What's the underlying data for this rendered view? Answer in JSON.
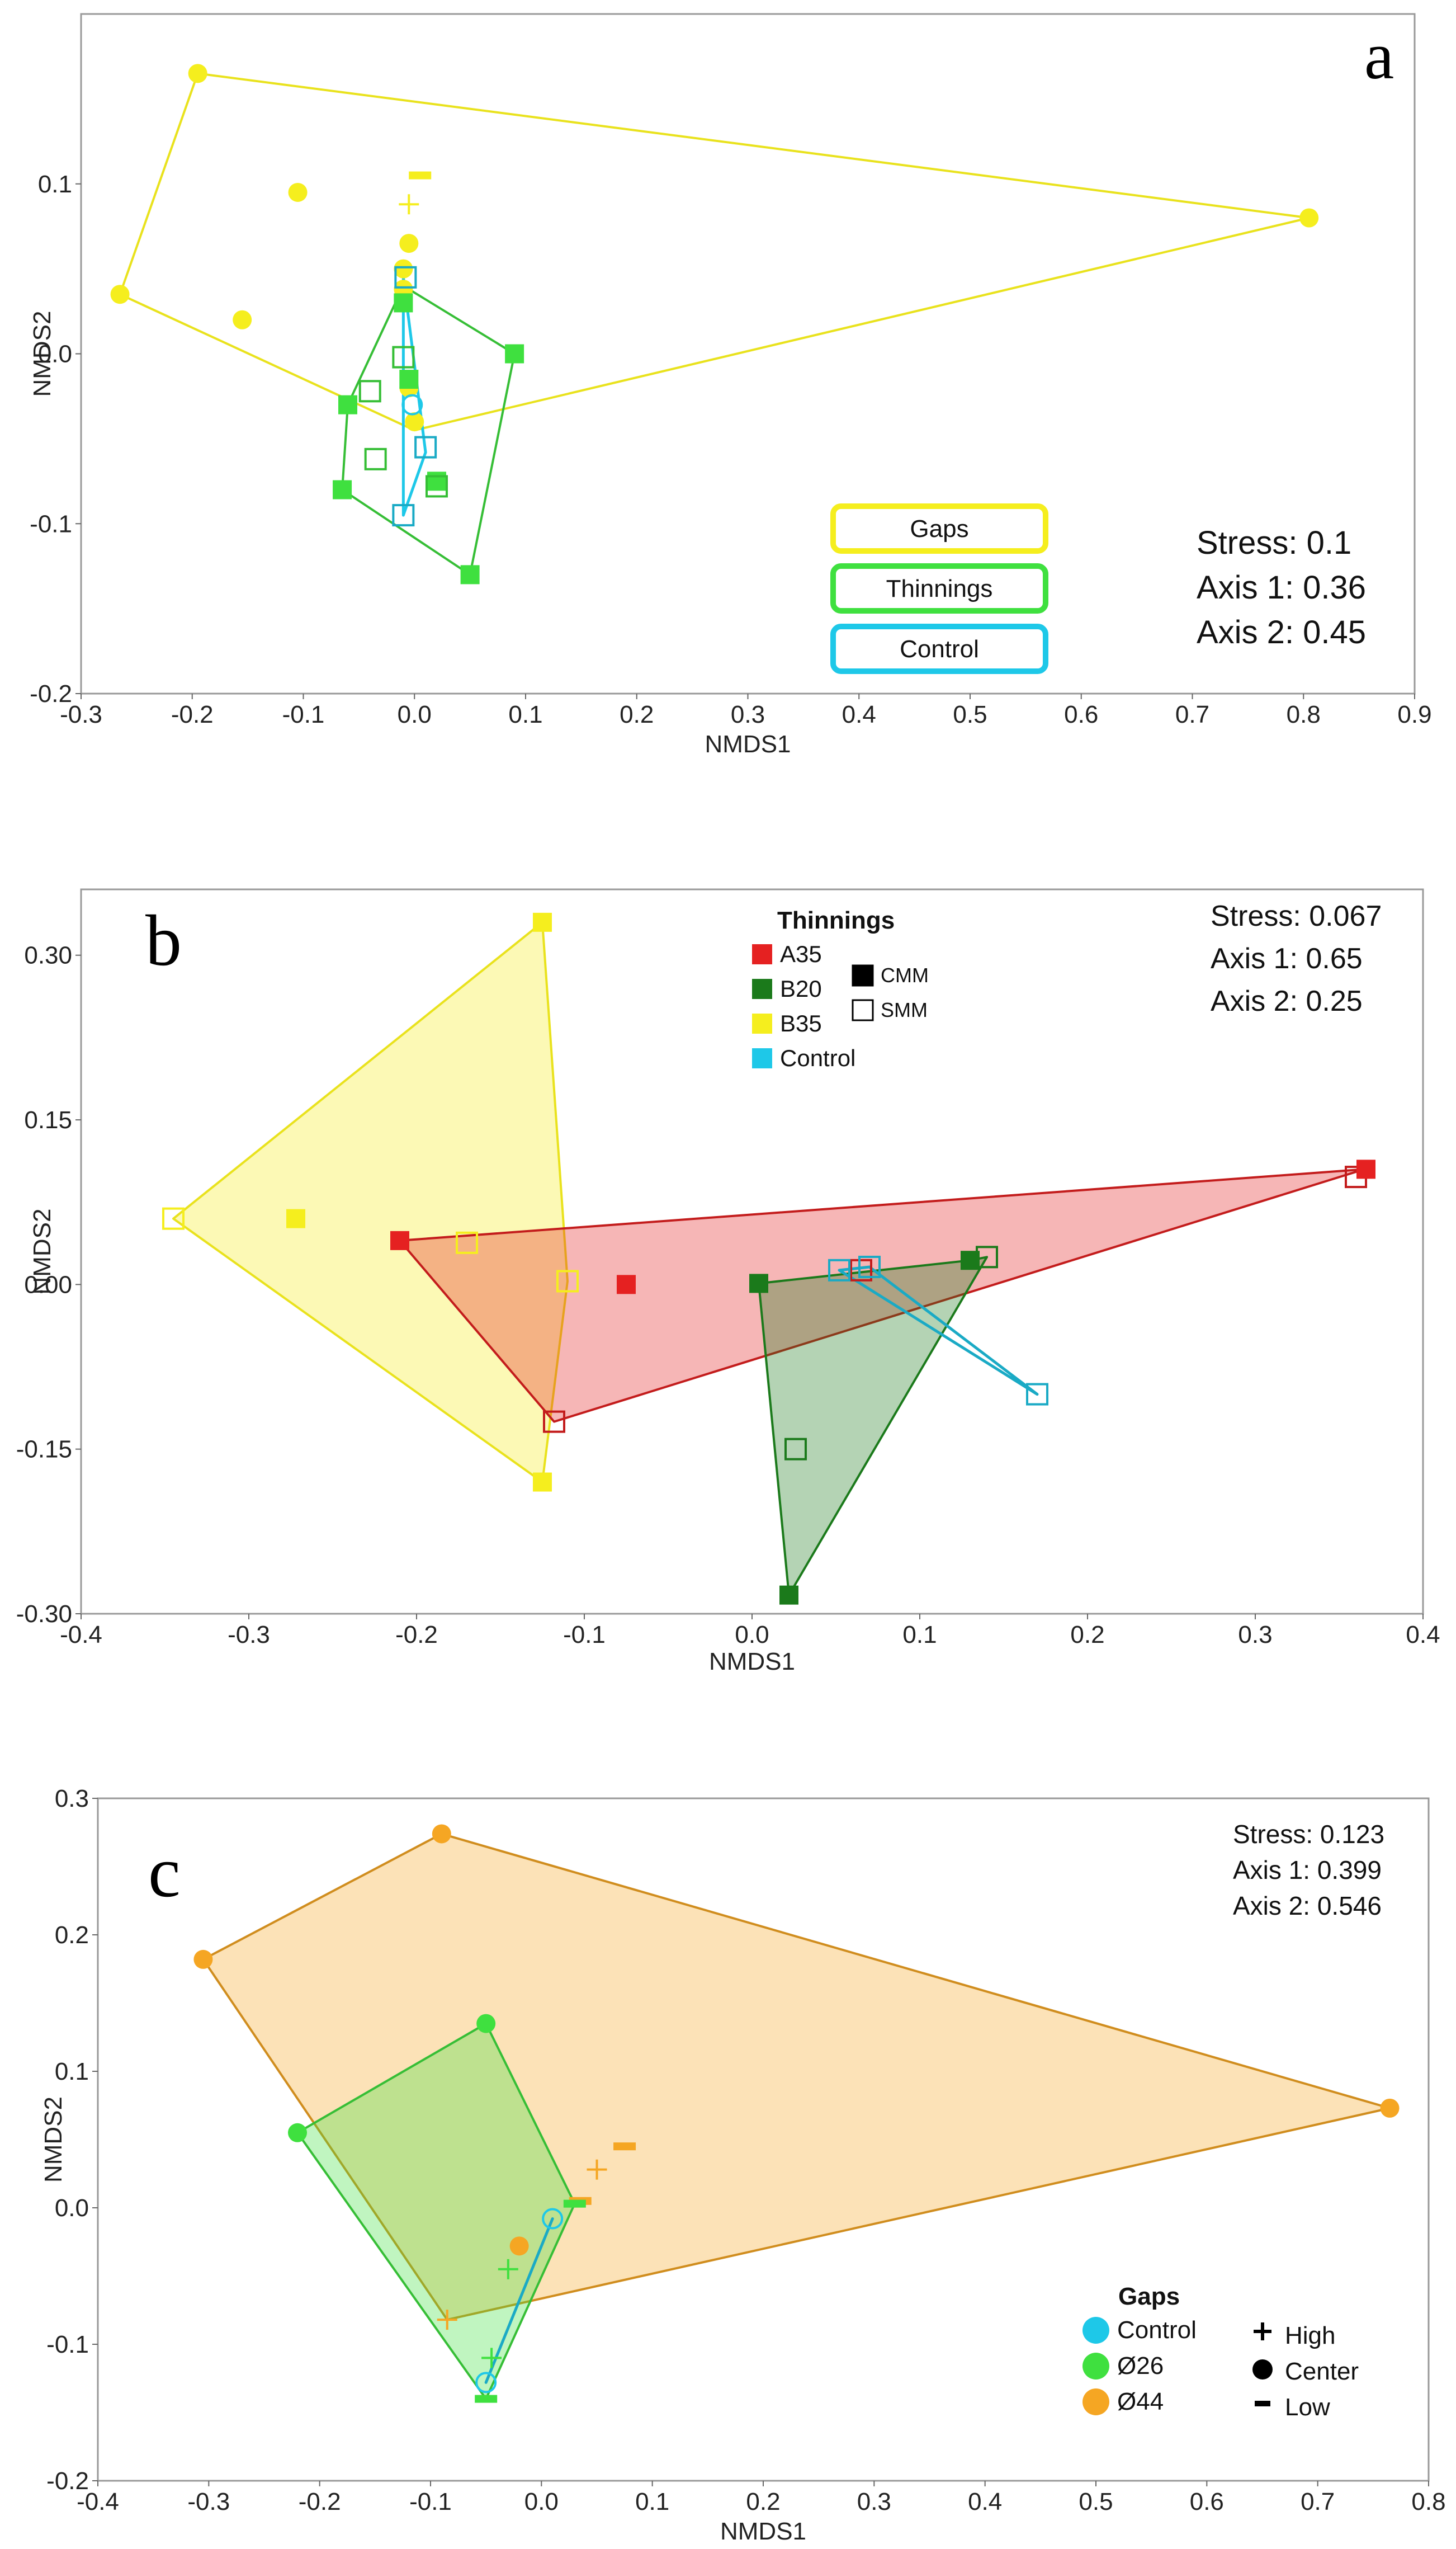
{
  "colors": {
    "yellow": "#F5EE1E",
    "green_light": "#3FE03F",
    "green_dark": "#1B7A1B",
    "cyan": "#1EC8E8",
    "red": "#E52121",
    "orange": "#F5A623",
    "gray_frame": "#999999"
  },
  "chart_data": [
    {
      "type": "scatter",
      "panel": "a",
      "xlabel": "NMDS1",
      "ylabel": "NMDS2",
      "xlim": [
        -0.3,
        0.9
      ],
      "ylim": [
        -0.2,
        0.2
      ],
      "xticks": [
        "-0.3",
        "-0.2",
        "-0.1",
        "0.0",
        "0.1",
        "0.2",
        "0.3",
        "0.4",
        "0.5",
        "0.6",
        "0.7",
        "0.8",
        "0.9"
      ],
      "yticks": [
        "0.1",
        "0.0",
        "-0.1",
        "-0.2"
      ],
      "stats": [
        "Stress: 0.1",
        "Axis 1: 0.36",
        "Axis 2: 0.45"
      ],
      "legend": [
        {
          "label": "Gaps",
          "color": "#F5EE1E"
        },
        {
          "label": "Thinnings",
          "color": "#3FE03F"
        },
        {
          "label": "Control",
          "color": "#1EC8E8"
        }
      ],
      "series": [
        {
          "name": "Gaps",
          "color": "#F5EE1E",
          "hull": [
            [
              -0.195,
              0.165
            ],
            [
              0.805,
              0.08
            ],
            [
              0.0,
              -0.045
            ],
            [
              -0.265,
              0.035
            ]
          ],
          "points": [
            {
              "x": -0.195,
              "y": 0.165,
              "m": "circle"
            },
            {
              "x": -0.105,
              "y": 0.095,
              "m": "circle"
            },
            {
              "x": -0.265,
              "y": 0.035,
              "m": "circle"
            },
            {
              "x": -0.155,
              "y": 0.02,
              "m": "circle"
            },
            {
              "x": 0.805,
              "y": 0.08,
              "m": "circle"
            },
            {
              "x": 0.005,
              "y": 0.105,
              "m": "dash"
            },
            {
              "x": -0.005,
              "y": 0.088,
              "m": "plus"
            },
            {
              "x": -0.005,
              "y": 0.065,
              "m": "circle"
            },
            {
              "x": -0.01,
              "y": 0.05,
              "m": "circle"
            },
            {
              "x": -0.01,
              "y": 0.038,
              "m": "circle"
            },
            {
              "x": -0.005,
              "y": -0.02,
              "m": "circle"
            },
            {
              "x": 0.0,
              "y": -0.04,
              "m": "circle"
            }
          ]
        },
        {
          "name": "Thinnings",
          "color": "#3FE03F",
          "hull": [
            [
              -0.01,
              0.04
            ],
            [
              0.09,
              0.0
            ],
            [
              0.05,
              -0.13
            ],
            [
              -0.065,
              -0.08
            ],
            [
              -0.06,
              -0.03
            ]
          ],
          "points": [
            {
              "x": 0.09,
              "y": 0.0,
              "m": "sq"
            },
            {
              "x": -0.06,
              "y": -0.03,
              "m": "sq"
            },
            {
              "x": -0.065,
              "y": -0.08,
              "m": "sq"
            },
            {
              "x": 0.05,
              "y": -0.13,
              "m": "sq"
            },
            {
              "x": 0.02,
              "y": -0.075,
              "m": "sq"
            },
            {
              "x": -0.01,
              "y": 0.03,
              "m": "sq"
            },
            {
              "x": -0.005,
              "y": -0.015,
              "m": "sq"
            },
            {
              "x": -0.01,
              "y": -0.002,
              "m": "osq"
            },
            {
              "x": -0.04,
              "y": -0.022,
              "m": "osq"
            },
            {
              "x": -0.035,
              "y": -0.062,
              "m": "osq"
            },
            {
              "x": 0.02,
              "y": -0.078,
              "m": "osq"
            }
          ]
        },
        {
          "name": "Control",
          "color": "#1EC8E8",
          "hull": [
            [
              -0.01,
              0.045
            ],
            [
              0.01,
              -0.058
            ],
            [
              -0.01,
              -0.095
            ]
          ],
          "points": [
            {
              "x": -0.008,
              "y": 0.045,
              "m": "osq"
            },
            {
              "x": -0.002,
              "y": -0.03,
              "m": "ocircle"
            },
            {
              "x": 0.01,
              "y": -0.055,
              "m": "osq"
            },
            {
              "x": -0.01,
              "y": -0.095,
              "m": "osq"
            }
          ]
        }
      ]
    },
    {
      "type": "scatter",
      "panel": "b",
      "xlabel": "NMDS1",
      "ylabel": "NMDS2",
      "xlim": [
        -0.4,
        0.4
      ],
      "ylim": [
        -0.3,
        0.36
      ],
      "xticks": [
        "-0.4",
        "-0.3",
        "-0.2",
        "-0.1",
        "0.0",
        "0.1",
        "0.2",
        "0.3",
        "0.4"
      ],
      "yticks": [
        "0.30",
        "0.15",
        "0.00",
        "-0.15",
        "-0.30"
      ],
      "stats": [
        "Stress: 0.067",
        "Axis 1: 0.65",
        "Axis 2: 0.25"
      ],
      "legend_title": "Thinnings",
      "legend": [
        {
          "label": "A35",
          "color": "#E52121"
        },
        {
          "label": "B20",
          "color": "#1B7A1B"
        },
        {
          "label": "B35",
          "color": "#F5EE1E"
        },
        {
          "label": "Control",
          "color": "#1EC8E8"
        }
      ],
      "legend_markers": [
        {
          "label": "CMM",
          "filled": true
        },
        {
          "label": "SMM",
          "filled": false
        }
      ],
      "series": [
        {
          "name": "B35",
          "color": "#F5EE1E",
          "fill": true,
          "hull": [
            [
              -0.345,
              0.06
            ],
            [
              -0.125,
              0.33
            ],
            [
              -0.11,
              0.003
            ],
            [
              -0.125,
              -0.18
            ]
          ],
          "points": [
            {
              "x": -0.125,
              "y": 0.33,
              "m": "sq"
            },
            {
              "x": -0.345,
              "y": 0.06,
              "m": "osq"
            },
            {
              "x": -0.272,
              "y": 0.06,
              "m": "sq"
            },
            {
              "x": -0.17,
              "y": 0.038,
              "m": "osq"
            },
            {
              "x": -0.11,
              "y": 0.003,
              "m": "osq"
            },
            {
              "x": -0.125,
              "y": -0.18,
              "m": "sq"
            }
          ]
        },
        {
          "name": "A35",
          "color": "#E52121",
          "fill": true,
          "hull": [
            [
              -0.21,
              0.04
            ],
            [
              0.365,
              0.105
            ],
            [
              -0.118,
              -0.125
            ]
          ],
          "points": [
            {
              "x": -0.21,
              "y": 0.04,
              "m": "sq"
            },
            {
              "x": -0.075,
              "y": 0.0,
              "m": "sq"
            },
            {
              "x": 0.36,
              "y": 0.098,
              "m": "osq"
            },
            {
              "x": 0.366,
              "y": 0.105,
              "m": "sq"
            },
            {
              "x": -0.118,
              "y": -0.125,
              "m": "osq"
            },
            {
              "x": 0.065,
              "y": 0.013,
              "m": "osq"
            }
          ]
        },
        {
          "name": "B20",
          "color": "#1B7A1B",
          "fill": true,
          "hull": [
            [
              0.004,
              0.001
            ],
            [
              0.13,
              0.022
            ],
            [
              0.14,
              0.025
            ],
            [
              0.022,
              -0.283
            ]
          ],
          "points": [
            {
              "x": 0.004,
              "y": 0.001,
              "m": "sq"
            },
            {
              "x": 0.13,
              "y": 0.022,
              "m": "sq"
            },
            {
              "x": 0.14,
              "y": 0.025,
              "m": "osq"
            },
            {
              "x": 0.026,
              "y": -0.15,
              "m": "osq"
            },
            {
              "x": 0.022,
              "y": -0.283,
              "m": "sq"
            }
          ]
        },
        {
          "name": "Control",
          "color": "#1EC8E8",
          "fill": false,
          "hull": [
            [
              0.052,
              0.013
            ],
            [
              0.07,
              0.016
            ],
            [
              0.17,
              -0.1
            ]
          ],
          "points": [
            {
              "x": 0.052,
              "y": 0.013,
              "m": "osq"
            },
            {
              "x": 0.07,
              "y": 0.016,
              "m": "osq"
            },
            {
              "x": 0.17,
              "y": -0.1,
              "m": "osq"
            }
          ]
        }
      ]
    },
    {
      "type": "scatter",
      "panel": "c",
      "xlabel": "NMDS1",
      "ylabel": "NMDS2",
      "xlim": [
        -0.4,
        0.8
      ],
      "ylim": [
        -0.2,
        0.3
      ],
      "xticks": [
        "-0.4",
        "-0.3",
        "-0.2",
        "-0.1",
        "0.0",
        "0.1",
        "0.2",
        "0.3",
        "0.4",
        "0.5",
        "0.6",
        "0.7",
        "0.8"
      ],
      "yticks": [
        "0.3",
        "0.2",
        "0.1",
        "0.0",
        "-0.1",
        "-0.2"
      ],
      "stats": [
        "Stress: 0.123",
        "Axis 1: 0.399",
        "Axis 2: 0.546"
      ],
      "legend_title": "Gaps",
      "legend": [
        {
          "label": "Control",
          "color": "#1EC8E8"
        },
        {
          "label": "Ø26",
          "color": "#3FE03F"
        },
        {
          "label": "Ø44",
          "color": "#F5A623"
        }
      ],
      "legend_markers": [
        {
          "label": "High",
          "marker": "plus"
        },
        {
          "label": "Center",
          "marker": "circle"
        },
        {
          "label": "Low",
          "marker": "dash"
        }
      ],
      "series": [
        {
          "name": "Ø44",
          "color": "#F5A623",
          "fill": true,
          "hull": [
            [
              -0.305,
              0.182
            ],
            [
              -0.09,
              0.274
            ],
            [
              0.765,
              0.073
            ],
            [
              -0.085,
              -0.082
            ]
          ],
          "points": [
            {
              "x": -0.09,
              "y": 0.274,
              "m": "circle"
            },
            {
              "x": -0.305,
              "y": 0.182,
              "m": "circle"
            },
            {
              "x": 0.765,
              "y": 0.073,
              "m": "circle"
            },
            {
              "x": -0.085,
              "y": -0.082,
              "m": "plus"
            },
            {
              "x": 0.075,
              "y": 0.045,
              "m": "dash"
            },
            {
              "x": 0.05,
              "y": 0.028,
              "m": "plus"
            },
            {
              "x": 0.035,
              "y": 0.005,
              "m": "dash"
            },
            {
              "x": -0.02,
              "y": -0.028,
              "m": "circle"
            }
          ]
        },
        {
          "name": "Ø26",
          "color": "#3FE03F",
          "fill": true,
          "hull": [
            [
              -0.22,
              0.055
            ],
            [
              -0.05,
              0.135
            ],
            [
              0.03,
              0.003
            ],
            [
              -0.05,
              -0.14
            ]
          ],
          "points": [
            {
              "x": -0.22,
              "y": 0.055,
              "m": "circle"
            },
            {
              "x": -0.05,
              "y": 0.135,
              "m": "circle"
            },
            {
              "x": 0.03,
              "y": 0.003,
              "m": "dash"
            },
            {
              "x": -0.03,
              "y": -0.045,
              "m": "plus"
            },
            {
              "x": -0.045,
              "y": -0.11,
              "m": "plus"
            },
            {
              "x": -0.05,
              "y": -0.14,
              "m": "dash"
            }
          ]
        },
        {
          "name": "Control",
          "color": "#1EC8E8",
          "fill": false,
          "hull": [
            [
              0.01,
              -0.008
            ],
            [
              -0.05,
              -0.128
            ]
          ],
          "points": [
            {
              "x": 0.01,
              "y": -0.008,
              "m": "ocircle"
            },
            {
              "x": -0.05,
              "y": -0.128,
              "m": "ocircle"
            }
          ]
        }
      ]
    }
  ]
}
